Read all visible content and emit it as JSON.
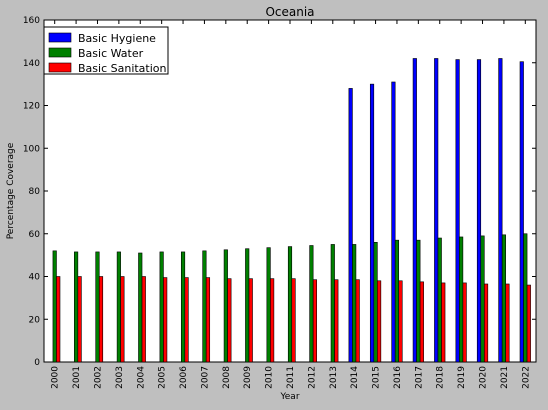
{
  "chart_data": {
    "type": "bar",
    "title": "Oceania",
    "xlabel": "Year",
    "ylabel": "Percentage Coverage",
    "ylim": [
      0,
      160
    ],
    "yticks": [
      0,
      20,
      40,
      60,
      80,
      100,
      120,
      140,
      160
    ],
    "grid": false,
    "legend_position": "top-left",
    "categories": [
      "2000",
      "2001",
      "2002",
      "2003",
      "2004",
      "2005",
      "2006",
      "2007",
      "2008",
      "2009",
      "2010",
      "2011",
      "2012",
      "2013",
      "2014",
      "2015",
      "2016",
      "2017",
      "2018",
      "2019",
      "2020",
      "2021",
      "2022"
    ],
    "series": [
      {
        "name": "Basic Hygiene",
        "color": "#0000ff",
        "values": [
          null,
          null,
          null,
          null,
          null,
          null,
          null,
          null,
          null,
          null,
          null,
          null,
          null,
          null,
          128,
          130,
          131,
          142,
          142,
          141.5,
          141.5,
          142,
          140.5
        ]
      },
      {
        "name": "Basic Water",
        "color": "#008000",
        "values": [
          52,
          51.5,
          51.5,
          51.5,
          51,
          51.5,
          51.5,
          52,
          52.5,
          53,
          53.5,
          54,
          54.5,
          55,
          55,
          56,
          57,
          57,
          58,
          58.5,
          59,
          59.5,
          60
        ]
      },
      {
        "name": "Basic Sanitation",
        "color": "#ff0000",
        "values": [
          40,
          40,
          40,
          40,
          40,
          39.5,
          39.5,
          39.5,
          39,
          39,
          39,
          39,
          38.5,
          38.5,
          38.5,
          38,
          38,
          37.5,
          37,
          37,
          36.5,
          36.5,
          36
        ]
      }
    ]
  }
}
